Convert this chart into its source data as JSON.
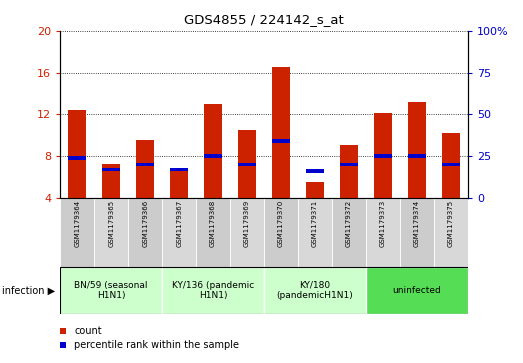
{
  "title": "GDS4855 / 224142_s_at",
  "samples": [
    "GSM1179364",
    "GSM1179365",
    "GSM1179366",
    "GSM1179367",
    "GSM1179368",
    "GSM1179369",
    "GSM1179370",
    "GSM1179371",
    "GSM1179372",
    "GSM1179373",
    "GSM1179374",
    "GSM1179375"
  ],
  "count_values": [
    12.4,
    7.2,
    9.5,
    6.9,
    13.0,
    10.5,
    16.5,
    5.5,
    9.1,
    12.1,
    13.2,
    10.2
  ],
  "percentile_values": [
    24,
    17,
    20,
    17,
    25,
    20,
    34,
    16,
    20,
    25,
    25,
    20
  ],
  "ylim_left": [
    4,
    20
  ],
  "ylim_right": [
    0,
    100
  ],
  "yticks_left": [
    4,
    8,
    12,
    16,
    20
  ],
  "yticks_right": [
    0,
    25,
    50,
    75,
    100
  ],
  "groups": [
    {
      "label": "BN/59 (seasonal\nH1N1)",
      "start": 1,
      "end": 3,
      "color": "#ccffcc"
    },
    {
      "label": "KY/136 (pandemic\nH1N1)",
      "start": 4,
      "end": 6,
      "color": "#ccffcc"
    },
    {
      "label": "KY/180\n(pandemicH1N1)",
      "start": 7,
      "end": 9,
      "color": "#ccffcc"
    },
    {
      "label": "uninfected",
      "start": 10,
      "end": 12,
      "color": "#55dd55"
    }
  ],
  "bar_color": "#cc2200",
  "blue_color": "#0000cc",
  "tick_label_color_left": "#cc2200",
  "tick_label_color_right": "#0000cc",
  "legend_items": [
    "count",
    "percentile rank within the sample"
  ]
}
